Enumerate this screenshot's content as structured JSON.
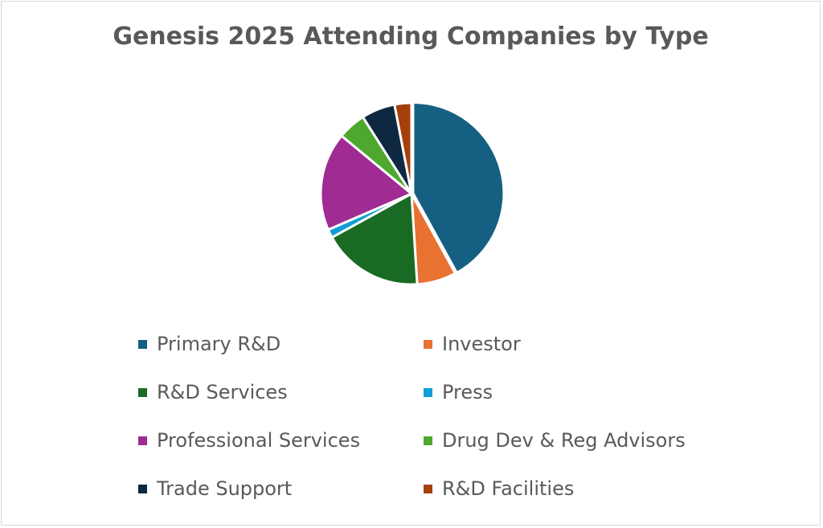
{
  "chart_data": {
    "type": "pie",
    "title": "Genesis 2025 Attending Companies by Type",
    "legend_position": "bottom",
    "series": [
      {
        "name": "Primary R&D",
        "value": 42,
        "color": "#156082"
      },
      {
        "name": "Investor",
        "value": 7,
        "color": "#E97132"
      },
      {
        "name": "R&D Services",
        "value": 18,
        "color": "#196B24"
      },
      {
        "name": "Press",
        "value": 1.5,
        "color": "#0F9ED5"
      },
      {
        "name": "Professional Services",
        "value": 17.5,
        "color": "#A02B93"
      },
      {
        "name": "Drug Dev & Reg Advisors",
        "value": 5,
        "color": "#4EA72E"
      },
      {
        "name": "Trade Support",
        "value": 6,
        "color": "#0E2841"
      },
      {
        "name": "R&D Facilities",
        "value": 3,
        "color": "#A5400C"
      }
    ]
  }
}
